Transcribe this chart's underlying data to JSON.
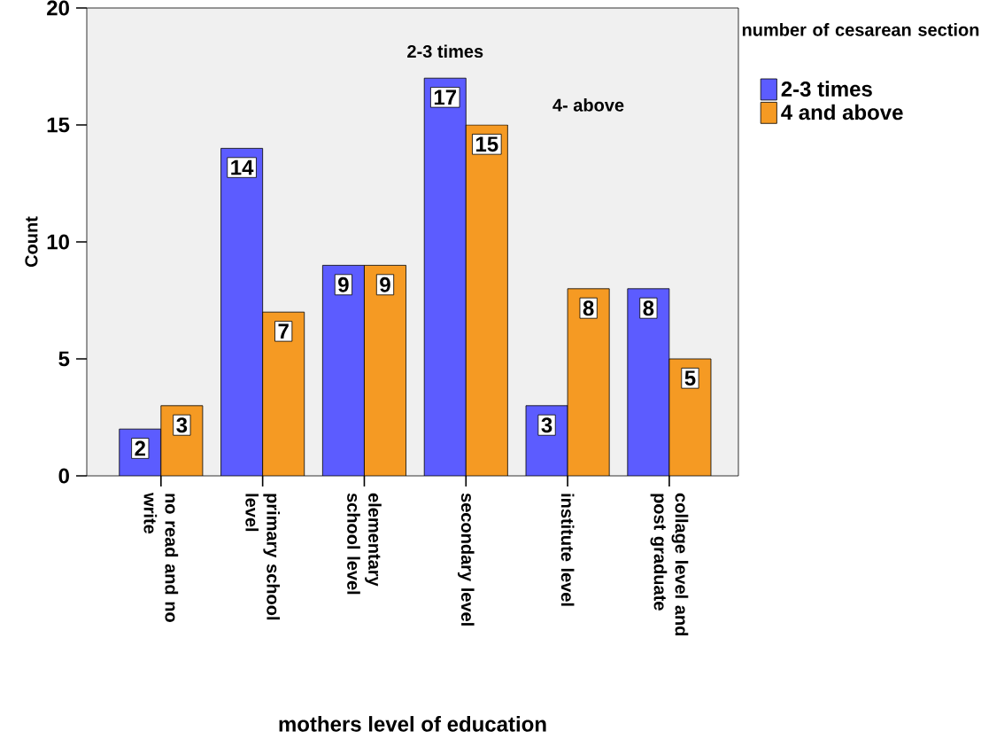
{
  "chart_data": {
    "type": "bar",
    "xlabel": "mothers level of education",
    "ylabel": "Count",
    "legend_title": "number of cesarean section",
    "categories": [
      "no read and no write",
      "primary school level",
      "elementary school level",
      "secondary level",
      "institute level",
      "collage level and post graduate"
    ],
    "series": [
      {
        "name": "2-3 times",
        "color": "#5c5cff",
        "values": [
          2,
          14,
          9,
          17,
          3,
          8
        ]
      },
      {
        "name": "4 and above",
        "color": "#f59a23",
        "values": [
          3,
          7,
          9,
          15,
          8,
          5
        ]
      }
    ],
    "ylim": [
      0,
      20
    ],
    "yticks": [
      0,
      5,
      10,
      15,
      20
    ],
    "data_labels": true,
    "legend": "top right",
    "grid": false,
    "annotations": [
      "2-3 times",
      "4- above"
    ]
  }
}
